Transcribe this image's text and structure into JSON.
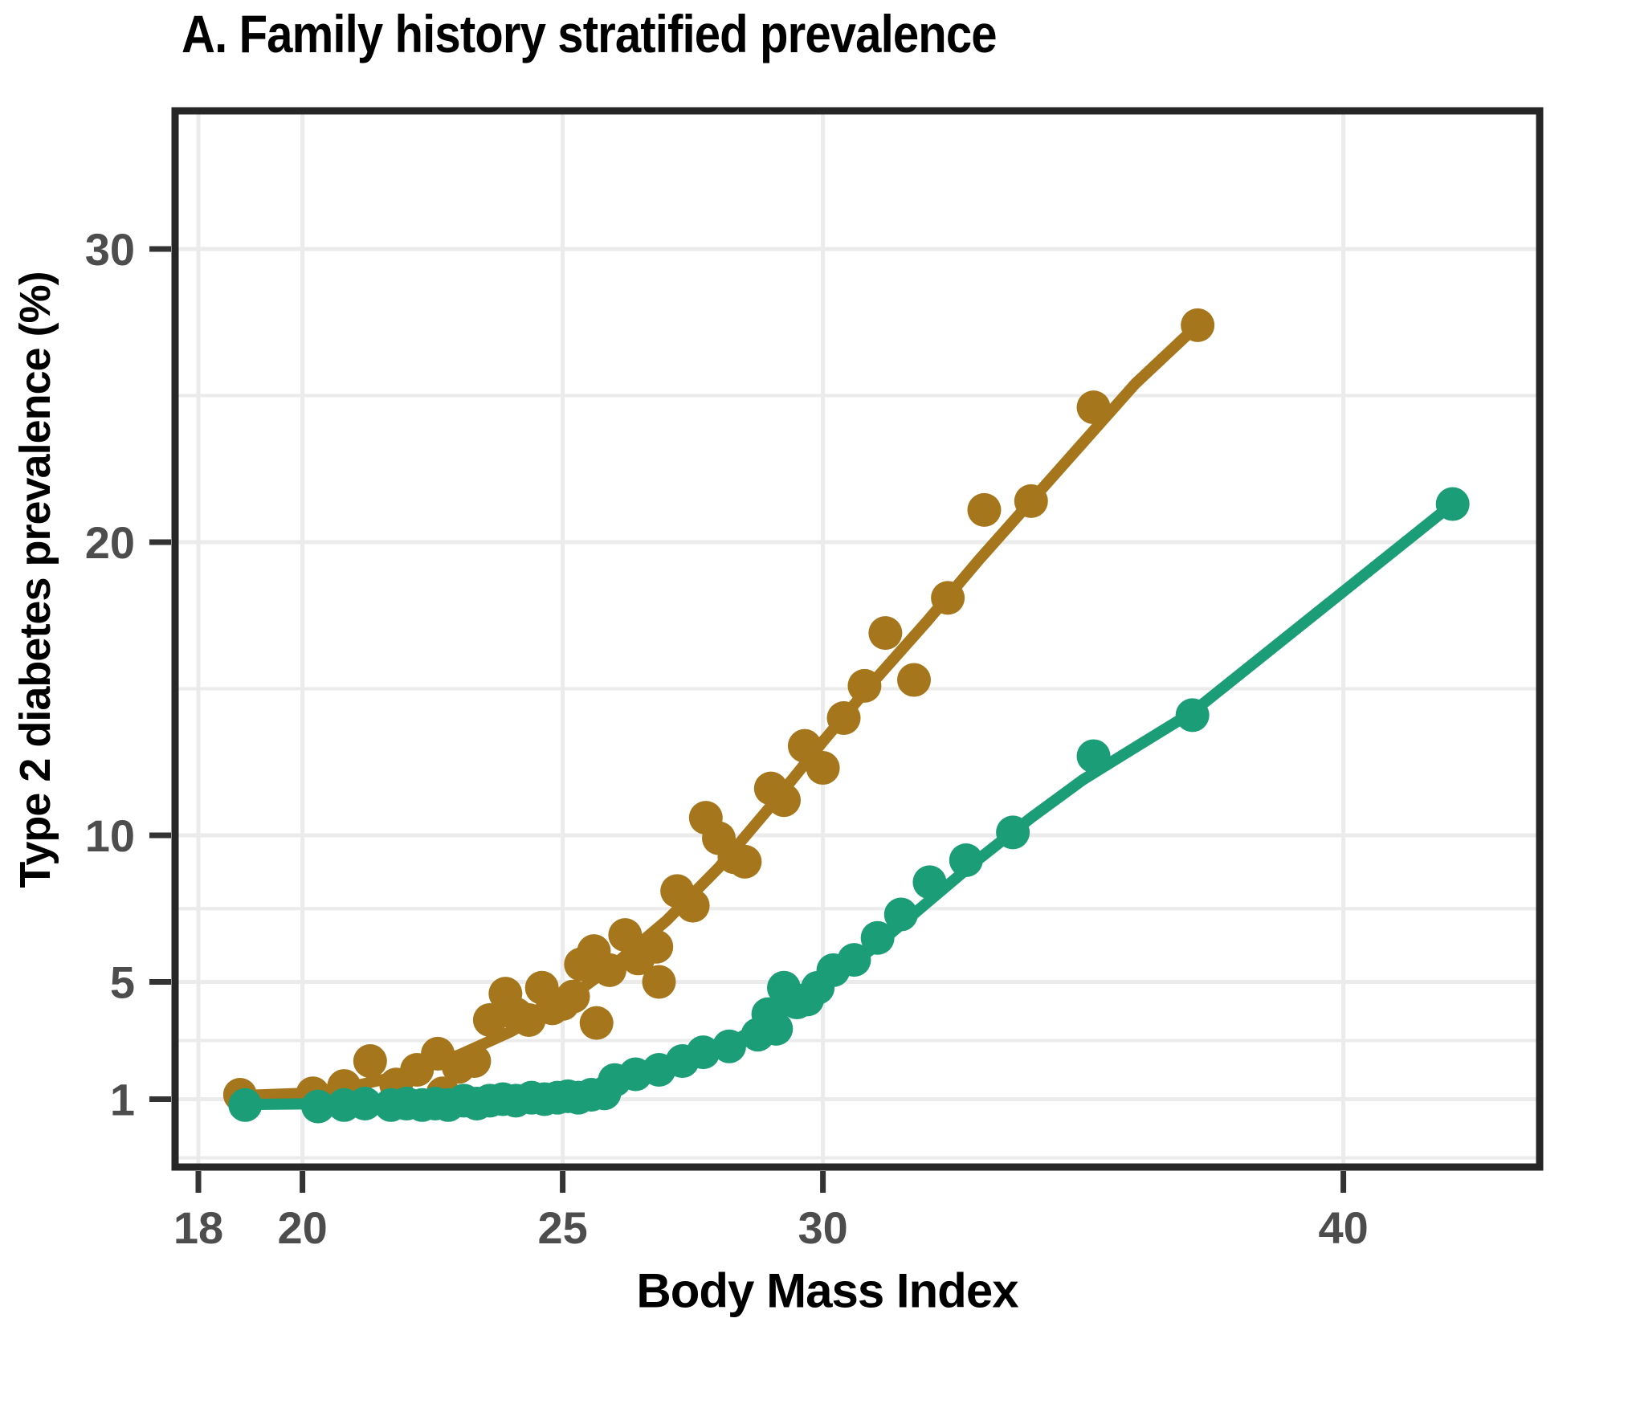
{
  "title": "A. Family history stratified prevalence",
  "chart_data": {
    "type": "scatter",
    "title": "A. Family history stratified prevalence",
    "xlabel": "Body Mass Index",
    "ylabel": "Type 2 diabetes prevalence (%)",
    "grid": true,
    "legend": "none",
    "x_axis": {
      "scale": "linear",
      "ticks": [
        18,
        20,
        25,
        30,
        40
      ],
      "range": [
        17.5,
        43.8
      ]
    },
    "y_axis": {
      "scale": "linear",
      "ticks": [
        1,
        5,
        10,
        20,
        30
      ],
      "minor_gridlines": [
        -1,
        3,
        7.5,
        15,
        25
      ],
      "range": [
        -1.3,
        34.7
      ]
    },
    "series": [
      {
        "name": "gold-series",
        "color": "#A6761D",
        "points": [
          [
            18.8,
            1.15
          ],
          [
            20.2,
            1.2
          ],
          [
            20.8,
            1.45
          ],
          [
            21.3,
            2.3
          ],
          [
            21.8,
            1.5
          ],
          [
            22.2,
            2.0
          ],
          [
            22.6,
            2.55
          ],
          [
            22.7,
            1.2
          ],
          [
            23.0,
            2.1
          ],
          [
            23.3,
            2.3
          ],
          [
            23.6,
            3.7
          ],
          [
            23.9,
            4.6
          ],
          [
            24.1,
            3.9
          ],
          [
            24.35,
            3.7
          ],
          [
            24.6,
            4.8
          ],
          [
            24.8,
            4.1
          ],
          [
            25.0,
            4.25
          ],
          [
            25.2,
            4.5
          ],
          [
            25.35,
            5.6
          ],
          [
            25.6,
            6.05
          ],
          [
            25.65,
            3.6
          ],
          [
            25.9,
            5.4
          ],
          [
            26.2,
            6.6
          ],
          [
            26.45,
            5.8
          ],
          [
            26.8,
            6.2
          ],
          [
            26.85,
            5.0
          ],
          [
            27.2,
            8.1
          ],
          [
            27.5,
            7.6
          ],
          [
            27.75,
            10.6
          ],
          [
            28.0,
            9.9
          ],
          [
            28.3,
            9.25
          ],
          [
            28.5,
            9.1
          ],
          [
            29.0,
            11.6
          ],
          [
            29.25,
            11.2
          ],
          [
            29.65,
            13.05
          ],
          [
            30.0,
            12.3
          ],
          [
            30.4,
            14.0
          ],
          [
            30.8,
            15.1
          ],
          [
            31.2,
            16.9
          ],
          [
            31.75,
            15.3
          ],
          [
            32.4,
            18.1
          ],
          [
            33.1,
            21.1
          ],
          [
            34.0,
            21.4
          ],
          [
            35.2,
            24.6
          ],
          [
            37.2,
            27.4
          ]
        ],
        "trend_line": [
          [
            18.8,
            1.12
          ],
          [
            20,
            1.2
          ],
          [
            21,
            1.45
          ],
          [
            22,
            1.85
          ],
          [
            23,
            2.5
          ],
          [
            24,
            3.3
          ],
          [
            25,
            4.3
          ],
          [
            26,
            5.6
          ],
          [
            27,
            7.1
          ],
          [
            28,
            8.9
          ],
          [
            29,
            11.0
          ],
          [
            30,
            13.2
          ],
          [
            31,
            15.3
          ],
          [
            32,
            17.3
          ],
          [
            33,
            19.4
          ],
          [
            34,
            21.4
          ],
          [
            35,
            23.4
          ],
          [
            36,
            25.4
          ],
          [
            37.2,
            27.4
          ]
        ]
      },
      {
        "name": "green-series",
        "color": "#1B9E77",
        "points": [
          [
            18.9,
            0.8
          ],
          [
            20.3,
            0.75
          ],
          [
            20.8,
            0.8
          ],
          [
            21.2,
            0.85
          ],
          [
            21.7,
            0.8
          ],
          [
            22.0,
            0.85
          ],
          [
            22.3,
            0.8
          ],
          [
            22.55,
            0.85
          ],
          [
            22.8,
            0.8
          ],
          [
            23.1,
            0.95
          ],
          [
            23.35,
            0.85
          ],
          [
            23.6,
            0.95
          ],
          [
            23.85,
            1.0
          ],
          [
            24.1,
            0.95
          ],
          [
            24.4,
            1.05
          ],
          [
            24.65,
            1.0
          ],
          [
            24.9,
            1.05
          ],
          [
            25.1,
            1.1
          ],
          [
            25.3,
            1.05
          ],
          [
            25.55,
            1.15
          ],
          [
            25.8,
            1.2
          ],
          [
            26.0,
            1.65
          ],
          [
            26.4,
            1.85
          ],
          [
            26.85,
            2.0
          ],
          [
            27.3,
            2.3
          ],
          [
            27.7,
            2.6
          ],
          [
            28.2,
            2.8
          ],
          [
            28.75,
            3.2
          ],
          [
            28.95,
            3.9
          ],
          [
            29.1,
            3.4
          ],
          [
            29.25,
            4.8
          ],
          [
            29.5,
            4.3
          ],
          [
            29.7,
            4.4
          ],
          [
            29.9,
            4.8
          ],
          [
            30.2,
            5.4
          ],
          [
            30.6,
            5.75
          ],
          [
            31.05,
            6.5
          ],
          [
            31.5,
            7.3
          ],
          [
            32.05,
            8.4
          ],
          [
            32.75,
            9.15
          ],
          [
            33.65,
            10.1
          ],
          [
            35.2,
            12.7
          ],
          [
            37.1,
            14.1
          ],
          [
            42.1,
            21.3
          ]
        ],
        "trend_line": [
          [
            18.9,
            0.82
          ],
          [
            20,
            0.84
          ],
          [
            21,
            0.86
          ],
          [
            22,
            0.9
          ],
          [
            23,
            0.95
          ],
          [
            24,
            1.0
          ],
          [
            25,
            1.1
          ],
          [
            26,
            1.5
          ],
          [
            27,
            2.0
          ],
          [
            28,
            2.7
          ],
          [
            29,
            3.7
          ],
          [
            30,
            4.9
          ],
          [
            31,
            6.2
          ],
          [
            32,
            7.7
          ],
          [
            33,
            9.2
          ],
          [
            34,
            10.6
          ],
          [
            35,
            11.9
          ],
          [
            36,
            13.0
          ],
          [
            37.1,
            14.2
          ],
          [
            42.1,
            21.3
          ]
        ]
      }
    ],
    "style": {
      "gridline_color": "#EBEBEB",
      "panel_border_color": "#262626",
      "tick_color": "#333333",
      "tick_label_color": "#4D4D4D",
      "title_color": "#000000",
      "background": "#FFFFFF"
    }
  }
}
